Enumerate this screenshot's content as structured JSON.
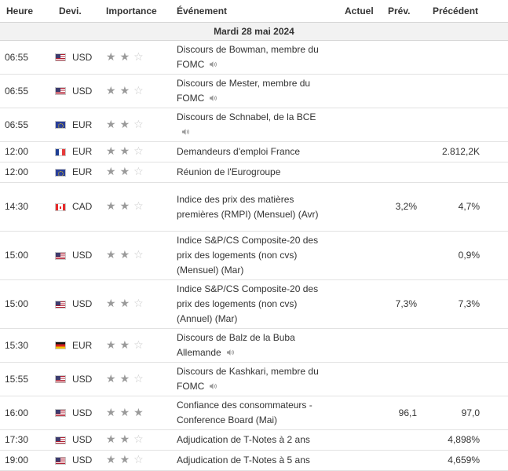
{
  "header": {
    "time": "Heure",
    "currency": "Devi.",
    "importance": "Importance",
    "event": "Événement",
    "actual": "Actuel",
    "forecast": "Prév.",
    "previous": "Précédent"
  },
  "date_row": "Mardi 28 mai 2024",
  "colors": {
    "header_border": "#d7d7d7",
    "date_bg": "#f2f2f2",
    "star_on": "#9a9a9a",
    "star_off": "#c8c8c8"
  },
  "rows": [
    {
      "time": "06:55",
      "flag": "us-flag-icon",
      "currency": "USD",
      "stars": 2,
      "event": "Discours de Bowman, membre du FOMC",
      "speech": true,
      "actual": "",
      "forecast": "",
      "previous": ""
    },
    {
      "time": "06:55",
      "flag": "us-flag-icon",
      "currency": "USD",
      "stars": 2,
      "event": "Discours de Mester, membre du FOMC",
      "speech": true,
      "actual": "",
      "forecast": "",
      "previous": ""
    },
    {
      "time": "06:55",
      "flag": "eu-flag-icon",
      "currency": "EUR",
      "stars": 2,
      "event": "Discours de Schnabel, de la BCE",
      "speech": true,
      "actual": "",
      "forecast": "",
      "previous": ""
    },
    {
      "time": "12:00",
      "flag": "fr-flag-icon",
      "currency": "EUR",
      "stars": 2,
      "event": "Demandeurs d'emploi France",
      "speech": false,
      "actual": "",
      "forecast": "",
      "previous": "2.812,2K"
    },
    {
      "time": "12:00",
      "flag": "eu-flag-icon",
      "currency": "EUR",
      "stars": 2,
      "event": "Réunion de l'Eurogroupe",
      "speech": false,
      "actual": "",
      "forecast": "",
      "previous": ""
    },
    {
      "time": "14:30",
      "flag": "ca-flag-icon",
      "currency": "CAD",
      "stars": 2,
      "event": "Indice des prix des matières premières (RMPI) (Mensuel) (Avr)",
      "speech": false,
      "actual": "",
      "forecast": "3,2%",
      "previous": "4,7%"
    },
    {
      "time": "15:00",
      "flag": "us-flag-icon",
      "currency": "USD",
      "stars": 2,
      "event": "Indice S&P/CS Composite-20 des prix des logements (non cvs) (Mensuel) (Mar)",
      "speech": false,
      "actual": "",
      "forecast": "",
      "previous": "0,9%"
    },
    {
      "time": "15:00",
      "flag": "us-flag-icon",
      "currency": "USD",
      "stars": 2,
      "event": "Indice S&P/CS Composite-20 des prix des logements (non cvs) (Annuel) (Mar)",
      "speech": false,
      "actual": "",
      "forecast": "7,3%",
      "previous": "7,3%"
    },
    {
      "time": "15:30",
      "flag": "de-flag-icon",
      "currency": "EUR",
      "stars": 2,
      "event": "Discours de Balz de la Buba Allemande",
      "speech": true,
      "actual": "",
      "forecast": "",
      "previous": ""
    },
    {
      "time": "15:55",
      "flag": "us-flag-icon",
      "currency": "USD",
      "stars": 2,
      "event": "Discours de Kashkari, membre du FOMC",
      "speech": true,
      "actual": "",
      "forecast": "",
      "previous": ""
    },
    {
      "time": "16:00",
      "flag": "us-flag-icon",
      "currency": "USD",
      "stars": 3,
      "event": "Confiance des consommateurs - Conference Board (Mai)",
      "speech": false,
      "actual": "",
      "forecast": "96,1",
      "previous": "97,0"
    },
    {
      "time": "17:30",
      "flag": "us-flag-icon",
      "currency": "USD",
      "stars": 2,
      "event": "Adjudication de T-Notes à 2 ans",
      "speech": false,
      "actual": "",
      "forecast": "",
      "previous": "4,898%"
    },
    {
      "time": "19:00",
      "flag": "us-flag-icon",
      "currency": "USD",
      "stars": 2,
      "event": "Adjudication de T-Notes à 5 ans",
      "speech": false,
      "actual": "",
      "forecast": "",
      "previous": "4,659%"
    }
  ]
}
